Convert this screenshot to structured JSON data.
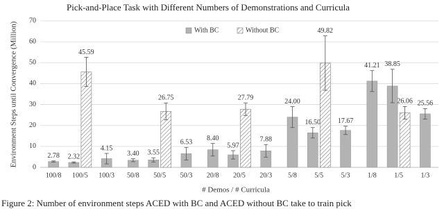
{
  "chart_data": {
    "type": "bar",
    "title": "Pick-and-Place Task with Different Numbers of Demonstrations and Curricula",
    "x_label": "# Demos / # Curricula",
    "y_label": "Environment Steps until Convergence (Million)",
    "caption": "Figure 2: Number of environment steps ACED with BC and ACED without BC take to train pick",
    "categories": [
      "100/8",
      "100/5",
      "100/3",
      "50/8",
      "50/5",
      "50/3",
      "20/8",
      "20/5",
      "20/3",
      "5/8",
      "5/5",
      "5/3",
      "1/8",
      "1/5",
      "1/3"
    ],
    "series": [
      {
        "name": "With BC",
        "color": "#b3b3b3",
        "pattern": "solid",
        "values": [
          2.78,
          2.32,
          4.15,
          3.4,
          3.55,
          6.53,
          8.4,
          5.97,
          7.88,
          24,
          16.5,
          17.67,
          41.21,
          38.85,
          25.56
        ],
        "value_labels": [
          "2.78",
          "2.32",
          "4.15",
          "3.40",
          "3.55",
          "6.53",
          "8.40",
          "5.97",
          "7.88",
          "24.00",
          "16.50",
          "17.67",
          "41.21",
          "38.85",
          "25.56"
        ],
        "errors": [
          0.3,
          0.3,
          2.5,
          0.7,
          1,
          3,
          3,
          2,
          3,
          5,
          2.5,
          2,
          5,
          8,
          2.5
        ]
      },
      {
        "name": "Without BC",
        "color": "#7f7f7f",
        "pattern": "hatch",
        "values": [
          null,
          45.59,
          null,
          null,
          26.75,
          null,
          null,
          27.79,
          null,
          null,
          49.82,
          null,
          null,
          26.06,
          null
        ],
        "value_labels": [
          null,
          "45.59",
          null,
          null,
          "26.75",
          null,
          null,
          "27.79",
          null,
          null,
          "49.82",
          null,
          null,
          "26.06",
          null
        ],
        "errors": [
          null,
          7,
          null,
          null,
          4,
          null,
          null,
          3,
          null,
          null,
          13,
          null,
          null,
          3,
          null
        ]
      }
    ],
    "ylim": [
      0,
      70
    ],
    "yticks": [
      0,
      10,
      20,
      30,
      40,
      50,
      60,
      70
    ],
    "grid": true,
    "legend": "top"
  }
}
